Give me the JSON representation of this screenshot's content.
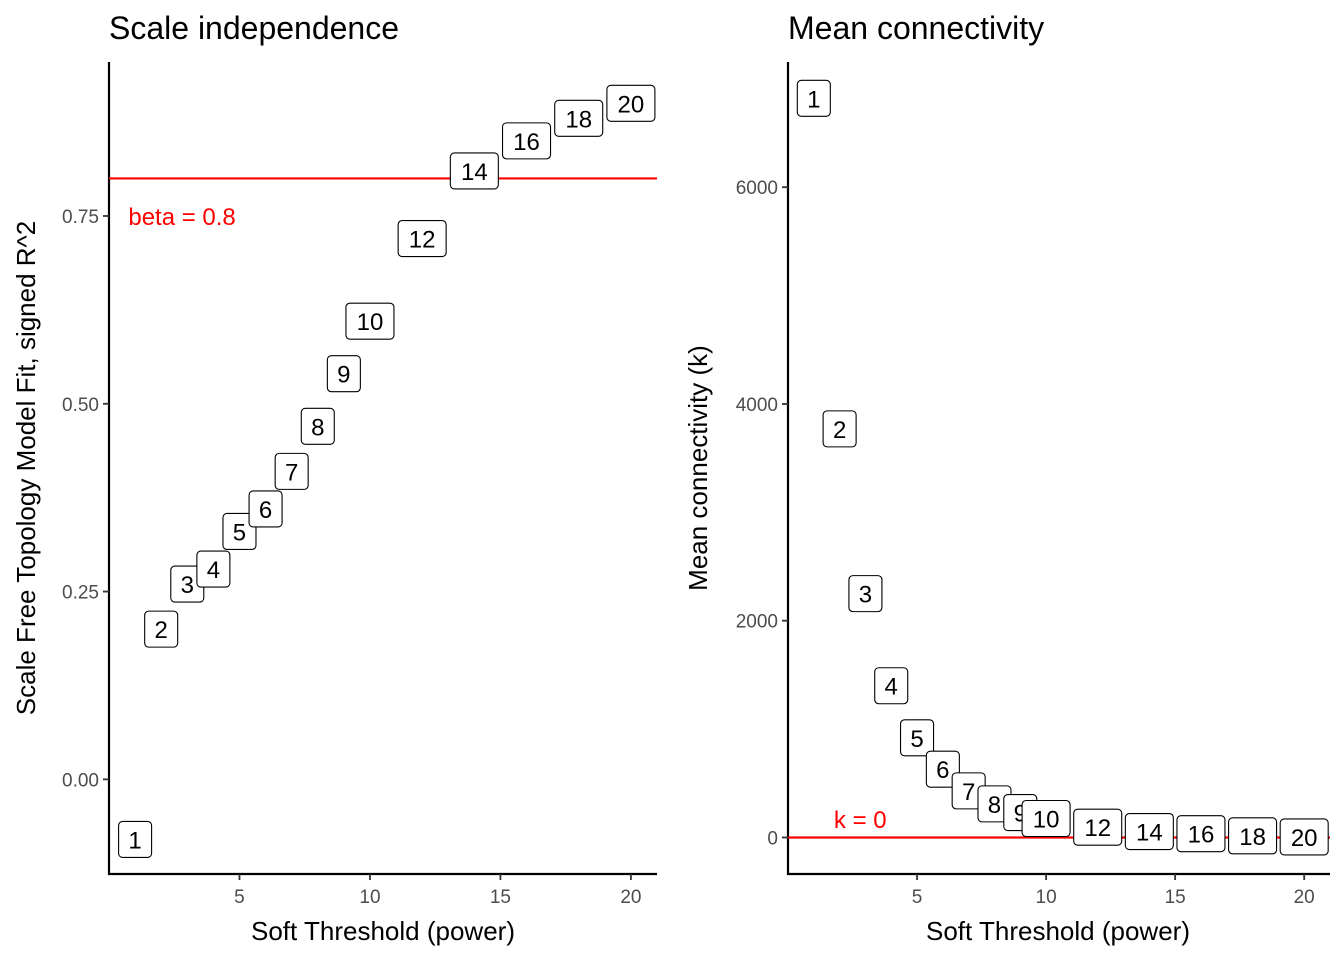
{
  "chart_data": [
    {
      "type": "scatter",
      "title": "Scale independence",
      "xlabel": "Soft Threshold (power)",
      "ylabel": "Scale Free Topology Model Fit, signed R^2",
      "xlim": [
        0.0,
        21.0
      ],
      "ylim": [
        -0.126,
        0.955
      ],
      "xticks": [
        5,
        10,
        15,
        20
      ],
      "yticks": [
        0.0,
        0.25,
        0.5,
        0.75
      ],
      "ytick_labels": [
        "0.00",
        "0.25",
        "0.50",
        "0.75"
      ],
      "grid": false,
      "points": [
        {
          "x": 1,
          "y": -0.08,
          "label": "1"
        },
        {
          "x": 2,
          "y": 0.2,
          "label": "2"
        },
        {
          "x": 3,
          "y": 0.26,
          "label": "3"
        },
        {
          "x": 4,
          "y": 0.28,
          "label": "4"
        },
        {
          "x": 5,
          "y": 0.33,
          "label": "5"
        },
        {
          "x": 6,
          "y": 0.36,
          "label": "6"
        },
        {
          "x": 7,
          "y": 0.41,
          "label": "7"
        },
        {
          "x": 8,
          "y": 0.47,
          "label": "8"
        },
        {
          "x": 9,
          "y": 0.54,
          "label": "9"
        },
        {
          "x": 10,
          "y": 0.61,
          "label": "10"
        },
        {
          "x": 12,
          "y": 0.72,
          "label": "12"
        },
        {
          "x": 14,
          "y": 0.81,
          "label": "14"
        },
        {
          "x": 16,
          "y": 0.85,
          "label": "16"
        },
        {
          "x": 18,
          "y": 0.88,
          "label": "18"
        },
        {
          "x": 20,
          "y": 0.9,
          "label": "20"
        }
      ],
      "reference_line": {
        "orientation": "horizontal",
        "value": 0.8,
        "label": "beta = 0.8",
        "label_x": 2.8,
        "label_y": 0.75,
        "color": "#ff0000"
      }
    },
    {
      "type": "scatter",
      "title": "Mean connectivity",
      "xlabel": "Soft Threshold (power)",
      "ylabel": "Mean connectivity (k)",
      "xlim": [
        0.0,
        21.0
      ],
      "ylim": [
        -337,
        7155
      ],
      "xticks": [
        5,
        10,
        15,
        20
      ],
      "yticks": [
        0,
        2000,
        4000,
        6000
      ],
      "ytick_labels": [
        "0",
        "2000",
        "4000",
        "6000"
      ],
      "grid": false,
      "points": [
        {
          "x": 1,
          "y": 6820,
          "label": "1"
        },
        {
          "x": 2,
          "y": 3770,
          "label": "2"
        },
        {
          "x": 3,
          "y": 2250,
          "label": "3"
        },
        {
          "x": 4,
          "y": 1400,
          "label": "4"
        },
        {
          "x": 5,
          "y": 920,
          "label": "5"
        },
        {
          "x": 6,
          "y": 630,
          "label": "6"
        },
        {
          "x": 7,
          "y": 430,
          "label": "7"
        },
        {
          "x": 8,
          "y": 310,
          "label": "8"
        },
        {
          "x": 9,
          "y": 230,
          "label": "9"
        },
        {
          "x": 10,
          "y": 175,
          "label": "10"
        },
        {
          "x": 12,
          "y": 95,
          "label": "12"
        },
        {
          "x": 14,
          "y": 55,
          "label": "14"
        },
        {
          "x": 16,
          "y": 35,
          "label": "16"
        },
        {
          "x": 18,
          "y": 15,
          "label": "18"
        },
        {
          "x": 20,
          "y": 5,
          "label": "20"
        }
      ],
      "reference_line": {
        "orientation": "horizontal",
        "value": 0,
        "label": "k = 0",
        "label_x": 2.8,
        "label_y": 170,
        "color": "#ff0000"
      }
    }
  ]
}
